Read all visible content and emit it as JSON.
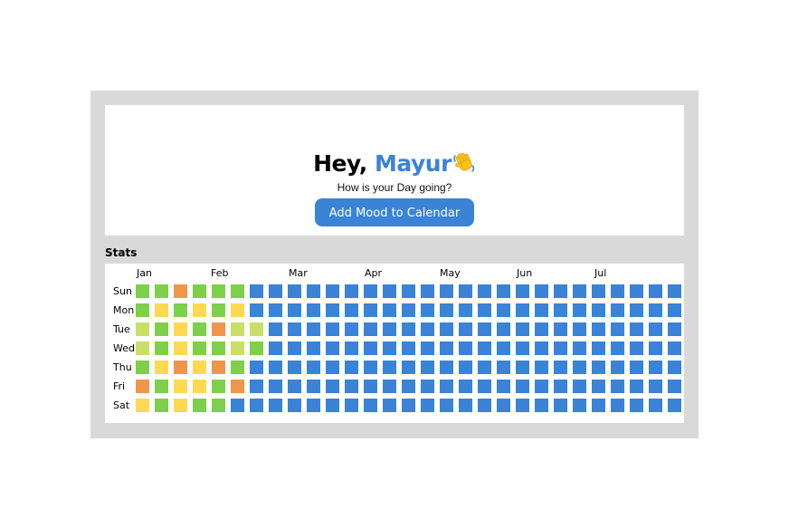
{
  "greeting": {
    "hey": "Hey,",
    "name": "Mayur",
    "emoji": "waving-hand-icon"
  },
  "subtitle": "How is your Day going?",
  "add_button": "Add Mood to Calendar",
  "stats": {
    "title": "Stats",
    "months": [
      "Jan",
      "Feb",
      "Mar",
      "Apr",
      "May",
      "Jun",
      "Jul"
    ],
    "days": [
      "Sun",
      "Mon",
      "Tue",
      "Wed",
      "Thu",
      "Fri",
      "Sat"
    ],
    "colors": {
      "G": "#7ed04b",
      "Y": "#fdd951",
      "O": "#f0964a",
      "L": "#c9df68",
      "B": "#3a83d6"
    },
    "rows": [
      "GGOGGGBBBBBBBBBBBBBBBBBBBBBBB",
      "GYGYGYBBBBBBBBBBBBBBBBBBBBBBB",
      "LGYGOLLBBBBBBBBBBBBBBBBBBBBBB",
      "LGYGGLGBBBBBBBBBBBBBBBBBBBBBB",
      "GYOYOGBBBBBBBBBBBBBBBBBBBBBBB",
      "OGYYGOBBBBBBBBBBBBBBBBBBBBBBB",
      "YGYGGBBBBBBBBBBBBBBBBBBBBBBBB"
    ]
  }
}
